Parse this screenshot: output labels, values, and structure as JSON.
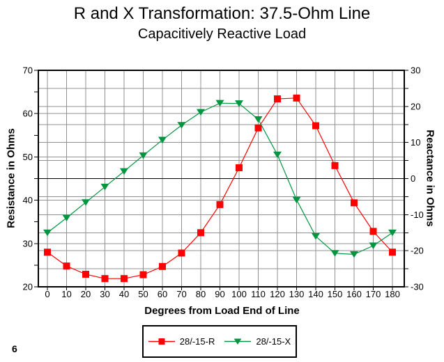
{
  "page": {
    "number": "6"
  },
  "colors": {
    "background": "#ffffff",
    "grid": "#909090",
    "axis": "#000000",
    "zero_line": "#000000",
    "series_r": "#ff0000",
    "series_x": "#009640"
  },
  "chart_data": {
    "type": "line",
    "title": "R and X Transformation: 37.5-Ohm Line",
    "subtitle": "Capacitively Reactive Load",
    "xlabel": "Degrees from Load End of Line",
    "x": [
      0,
      10,
      20,
      30,
      40,
      50,
      60,
      70,
      80,
      90,
      100,
      110,
      120,
      130,
      140,
      150,
      160,
      170,
      180
    ],
    "left_axis": {
      "label": "Resistance in Ohms",
      "min": 20,
      "max": 70,
      "ticks": [
        70,
        60,
        50,
        40,
        30,
        20
      ],
      "grid_step": 10,
      "minor_tick_step": 5
    },
    "right_axis": {
      "label": "Reactance in Ohms",
      "min": -30,
      "max": 30,
      "ticks": [
        30,
        20,
        10,
        0,
        -10,
        -20,
        -30
      ],
      "grid_step": 5,
      "minor_tick_step": 5,
      "zero_line": true
    },
    "grid": true,
    "legend_position": "bottom-center",
    "series": [
      {
        "name": "28/-15-R",
        "axis": "left",
        "color": "#ff0000",
        "marker": "square",
        "values": [
          28.0,
          24.8,
          22.9,
          21.9,
          21.9,
          22.8,
          24.7,
          27.8,
          32.5,
          39.0,
          47.5,
          56.7,
          63.4,
          63.6,
          57.2,
          48.0,
          39.4,
          32.8,
          28.0
        ]
      },
      {
        "name": "28/-15-X",
        "axis": "right",
        "color": "#009640",
        "marker": "triangle-down",
        "values": [
          -15.0,
          -10.9,
          -6.6,
          -2.3,
          2.0,
          6.4,
          10.7,
          14.8,
          18.4,
          20.9,
          20.8,
          16.4,
          6.6,
          -5.9,
          -16.0,
          -20.7,
          -21.0,
          -18.6,
          -15.0
        ]
      }
    ]
  }
}
